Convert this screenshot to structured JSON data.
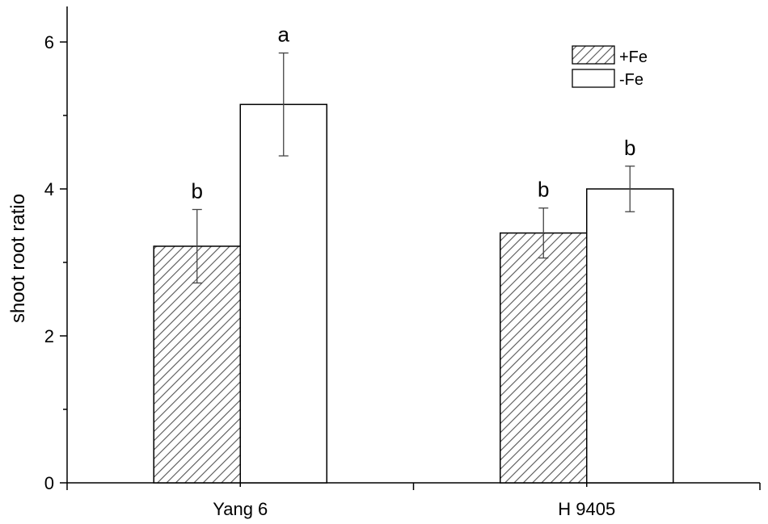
{
  "chart_data": {
    "type": "bar",
    "xlabel": "",
    "ylabel": "shoot root ratio",
    "ylim": [
      0,
      7
    ],
    "yticks": [
      0,
      2,
      4,
      6
    ],
    "grid": false,
    "legend_position": "top-right",
    "categories": [
      "Yang 6",
      "H 9405"
    ],
    "series": [
      {
        "name": "+Fe",
        "fill": "hatched",
        "color": "#555555",
        "values": [
          3.22,
          3.4
        ],
        "errors": [
          0.5,
          0.34
        ],
        "significance": [
          "b",
          "b"
        ]
      },
      {
        "name": "-Fe",
        "fill": "white",
        "color": "#ffffff",
        "values": [
          5.15,
          4.0
        ],
        "errors": [
          0.7,
          0.31
        ],
        "significance": [
          "a",
          "b"
        ]
      }
    ]
  }
}
